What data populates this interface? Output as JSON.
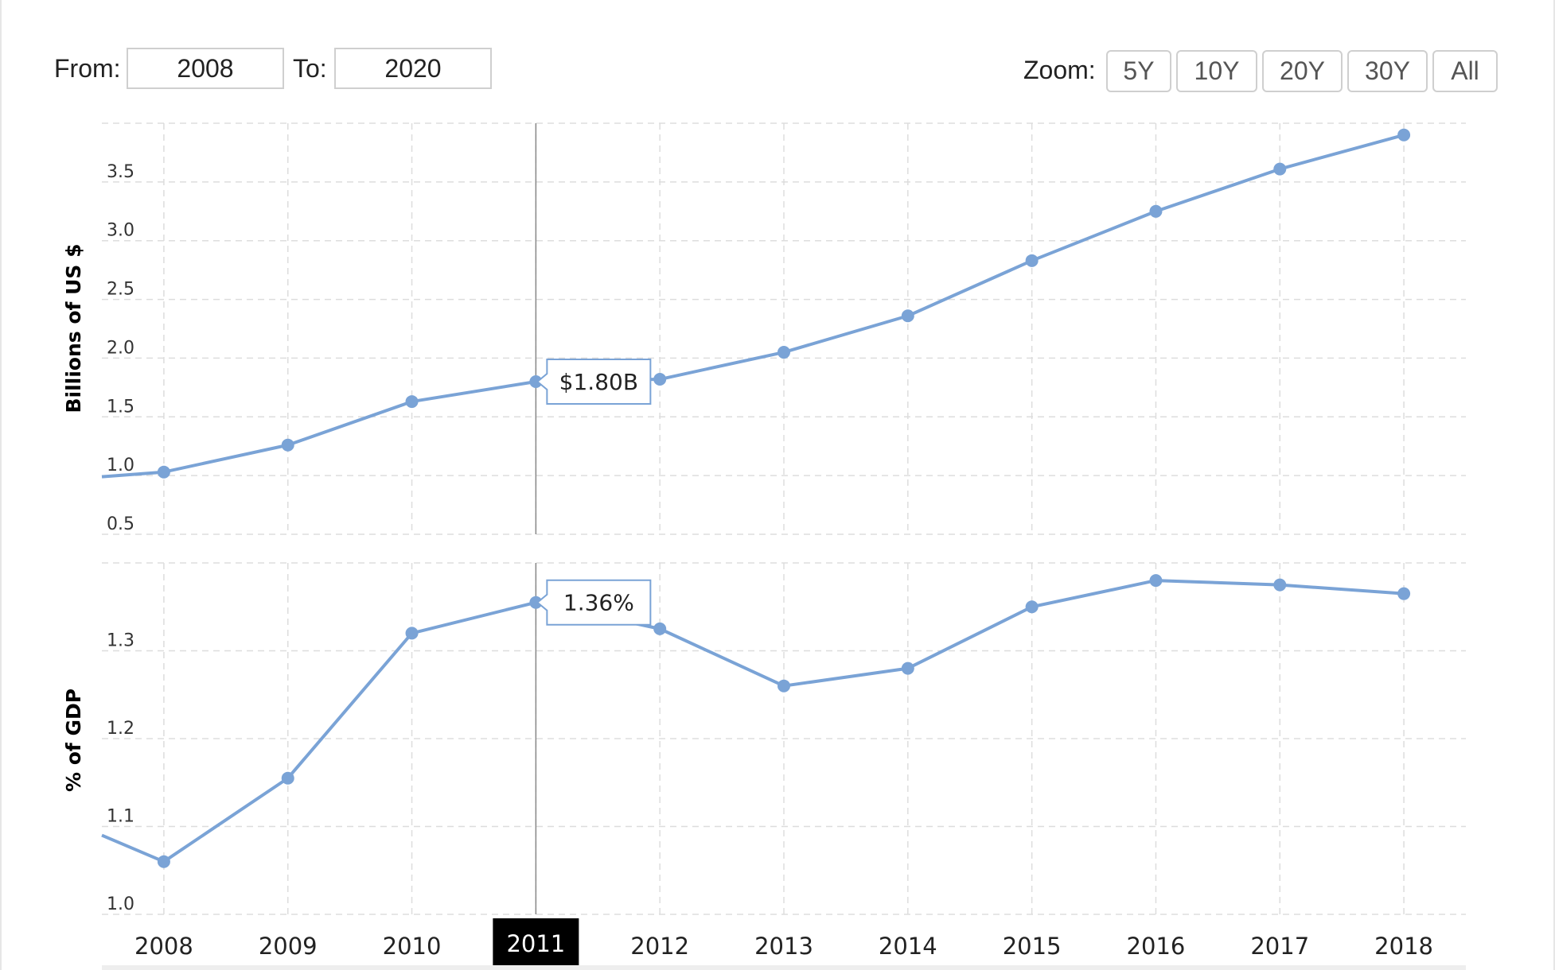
{
  "controls": {
    "from_label": "From:",
    "from_value": "2008",
    "to_label": "To:",
    "to_value": "2020",
    "zoom_label": "Zoom:",
    "zoom_options": [
      "5Y",
      "10Y",
      "20Y",
      "30Y",
      "All"
    ]
  },
  "colors": {
    "series": "#7aa3d6",
    "grid": "#dddddd",
    "crosshair": "#888888",
    "highlight_bg": "#000000",
    "highlight_text": "#ffffff"
  },
  "chart_data": [
    {
      "type": "line",
      "title": "",
      "ylabel": "Billions of US $",
      "x": [
        2008,
        2009,
        2010,
        2011,
        2012,
        2013,
        2014,
        2015,
        2016,
        2017,
        2018
      ],
      "series": [
        {
          "values": [
            1.03,
            1.26,
            1.63,
            1.8,
            1.82,
            2.05,
            2.36,
            2.83,
            3.25,
            3.61,
            3.9
          ]
        }
      ],
      "y_ticks": [
        "0.5",
        "1.0",
        "1.5",
        "2.0",
        "2.5",
        "3.0",
        "3.5"
      ],
      "ylim": [
        0.5,
        4.0
      ],
      "x_range": [
        2007.5,
        2018.5
      ],
      "lead_in_value": 0.99,
      "grid": true,
      "tooltip": {
        "x": 2011,
        "text": "$1.80B"
      }
    },
    {
      "type": "line",
      "title": "",
      "ylabel": "% of GDP",
      "x": [
        2008,
        2009,
        2010,
        2011,
        2012,
        2013,
        2014,
        2015,
        2016,
        2017,
        2018
      ],
      "series": [
        {
          "values": [
            1.06,
            1.155,
            1.32,
            1.355,
            1.325,
            1.26,
            1.28,
            1.35,
            1.38,
            1.375,
            1.365
          ]
        }
      ],
      "y_ticks": [
        "1.0",
        "1.1",
        "1.2",
        "1.3"
      ],
      "ylim": [
        1.0,
        1.4
      ],
      "x_range": [
        2007.5,
        2018.5
      ],
      "lead_in_value": 1.09,
      "grid": true,
      "tooltip": {
        "x": 2011,
        "text": "1.36%"
      }
    }
  ],
  "x_axis": {
    "tick_labels": [
      "2008",
      "2009",
      "2010",
      "2011",
      "2012",
      "2013",
      "2014",
      "2015",
      "2016",
      "2017",
      "2018"
    ],
    "highlighted": "2011"
  }
}
